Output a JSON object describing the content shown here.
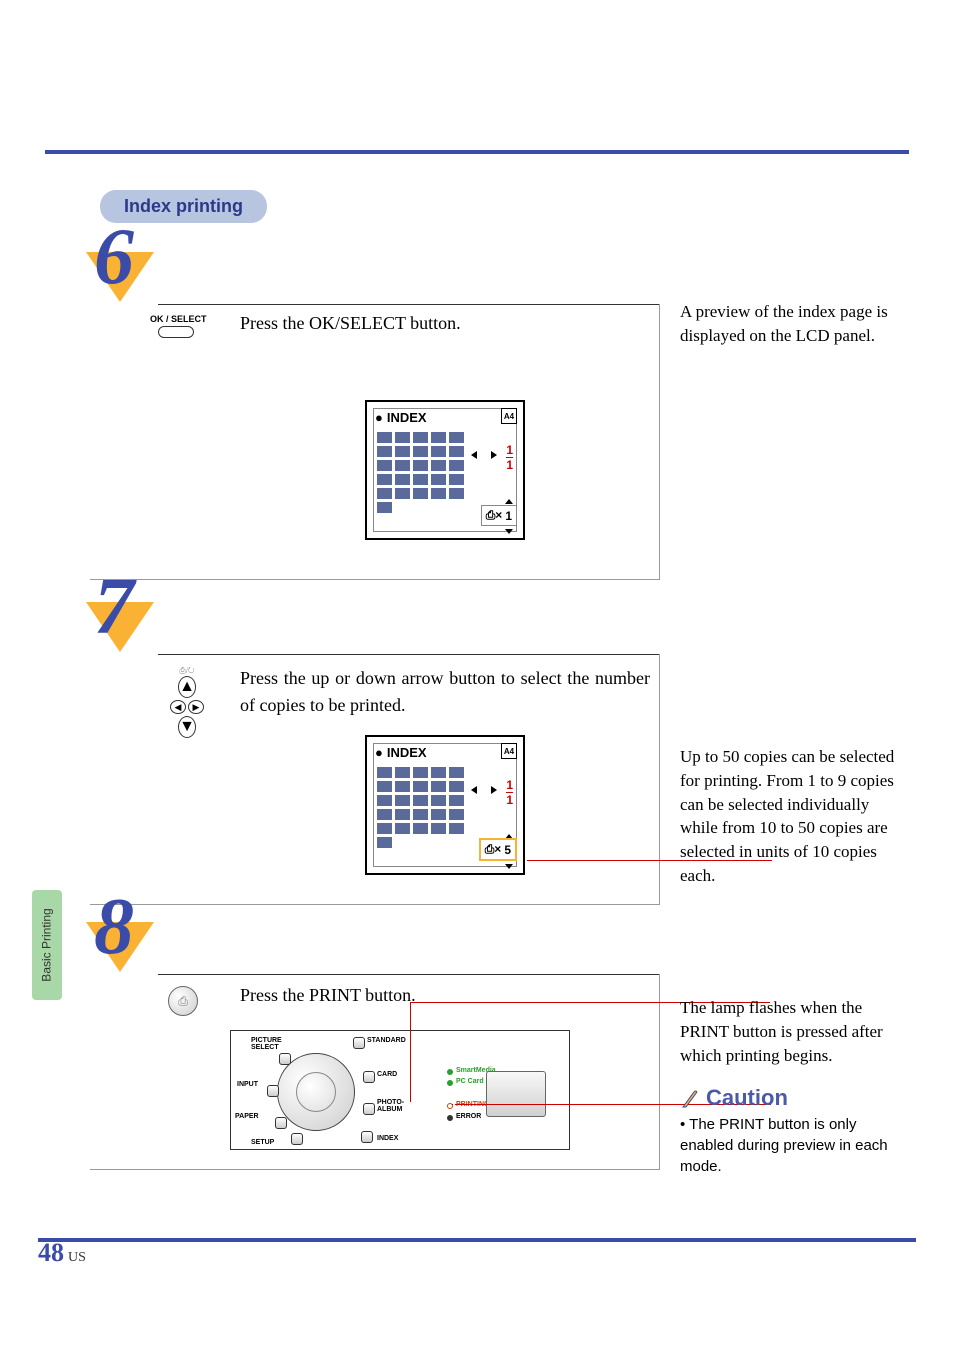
{
  "colors": {
    "accent_blue": "#3b4ba8",
    "pill_bg": "#b8c5e0",
    "orange": "#f9b233",
    "side_tab": "#a8d8a8",
    "red": "#c00000",
    "thumb": "#5a6a9a"
  },
  "section_title": "Index printing",
  "side_tab": "Basic Printing",
  "page_number": "48",
  "page_region": "US",
  "steps": {
    "s6": {
      "num": "6",
      "button_label": "OK / SELECT",
      "instruction": "Press the OK/SELECT button.",
      "note": "A preview of the index page is displayed on the LCD panel.",
      "lcd": {
        "title": "INDEX",
        "paper": "A4",
        "frac_top": "1",
        "frac_bot": "1",
        "copies": "1",
        "thumb_rows": 6,
        "thumb_cols": 5,
        "last_row_count": 1
      }
    },
    "s7": {
      "num": "7",
      "instruction": "Press the up or down arrow button to select the number of copies to be printed.",
      "note": "Up to 50 copies can be selected for printing. From 1 to 9 copies can be selected individually while from 10 to 50 copies are selected in units of 10 copies each.",
      "lcd": {
        "title": "INDEX",
        "paper": "A4",
        "frac_top": "1",
        "frac_bot": "1",
        "copies": "5",
        "thumb_rows": 6,
        "thumb_cols": 5,
        "last_row_count": 1
      }
    },
    "s8": {
      "num": "8",
      "instruction": "Press the PRINT button.",
      "note": "The lamp flashes when the PRINT button is pressed after which printing begins.",
      "caution_title": "Caution",
      "caution_body": "The PRINT button is only enabled during preview in each mode.",
      "panel": {
        "picture_select": "PICTURE\nSELECT",
        "input": "INPUT",
        "paper": "PAPER",
        "setup": "SETUP",
        "standard": "STANDARD",
        "card": "CARD",
        "photo_album": "PHOTO-\nALBUM",
        "index": "INDEX",
        "smartmedia": "SmartMedia",
        "pccard": "PC Card",
        "printing": "PRINTING",
        "error": "ERROR",
        "led_colors": {
          "smartmedia": "#2aa02a",
          "pccard": "#2aa02a",
          "printing": "#d04000",
          "error": "#333333"
        }
      }
    }
  }
}
